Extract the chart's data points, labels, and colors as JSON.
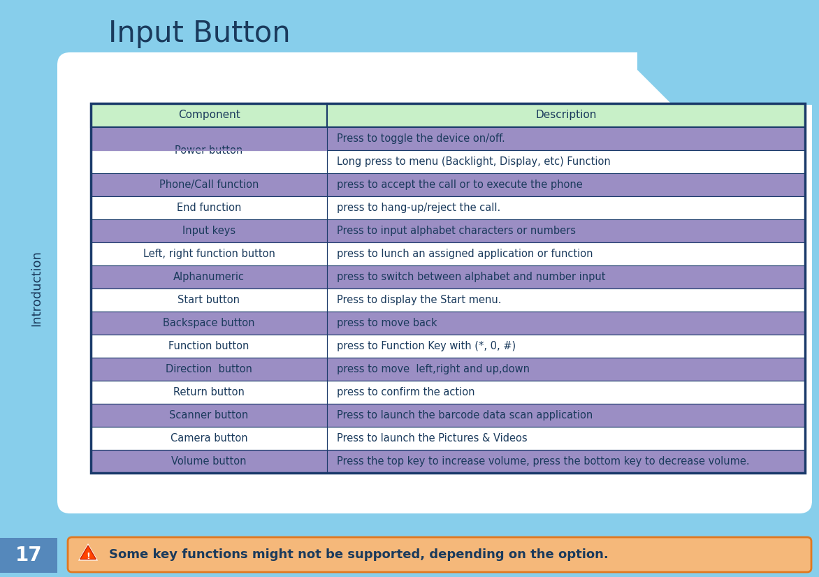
{
  "title": "Input Button",
  "bg_color": "#87CEEB",
  "white_panel_color": "#FFFFFF",
  "header_bg": "#C8F0C8",
  "header_text_color": "#1a3a5c",
  "col1_header": "Component",
  "col2_header": "Description",
  "rows": [
    {
      "component": "Power button",
      "description": "Press to toggle the device on/off.",
      "bg": "#9B8EC4",
      "hide_comp": false,
      "merge_start": true
    },
    {
      "component": "",
      "description": "Long press to menu (Backlight, Display, etc) Function",
      "bg": "#FFFFFF",
      "hide_comp": true,
      "merge_start": false
    },
    {
      "component": "Phone/Call function",
      "description": "press to accept the call or to execute the phone",
      "bg": "#9B8EC4",
      "hide_comp": false,
      "merge_start": false
    },
    {
      "component": "End function",
      "description": "press to hang-up/reject the call.",
      "bg": "#FFFFFF",
      "hide_comp": false,
      "merge_start": false
    },
    {
      "component": "Input keys",
      "description": "Press to input alphabet characters or numbers",
      "bg": "#9B8EC4",
      "hide_comp": false,
      "merge_start": false
    },
    {
      "component": "Left, right function button",
      "description": "press to lunch an assigned application or function",
      "bg": "#FFFFFF",
      "hide_comp": false,
      "merge_start": false
    },
    {
      "component": "Alphanumeric",
      "description": "press to switch between alphabet and number input",
      "bg": "#9B8EC4",
      "hide_comp": false,
      "merge_start": false
    },
    {
      "component": "Start button",
      "description": "Press to display the Start menu.",
      "bg": "#FFFFFF",
      "hide_comp": false,
      "merge_start": false
    },
    {
      "component": "Backspace button",
      "description": "press to move back",
      "bg": "#9B8EC4",
      "hide_comp": false,
      "merge_start": false
    },
    {
      "component": "Function button",
      "description": "press to Function Key with (*, 0, #)",
      "bg": "#FFFFFF",
      "hide_comp": false,
      "merge_start": false
    },
    {
      "component": "Direction  button",
      "description": "press to move  left,right and up,down",
      "bg": "#9B8EC4",
      "hide_comp": false,
      "merge_start": false
    },
    {
      "component": "Return button",
      "description": "press to confirm the action",
      "bg": "#FFFFFF",
      "hide_comp": false,
      "merge_start": false
    },
    {
      "component": "Scanner button",
      "description": "Press to launch the barcode data scan application",
      "bg": "#9B8EC4",
      "hide_comp": false,
      "merge_start": false
    },
    {
      "component": "Camera button",
      "description": "Press to launch the Pictures & Videos",
      "bg": "#FFFFFF",
      "hide_comp": false,
      "merge_start": false
    },
    {
      "component": "Volume button",
      "description": "Press the top key to increase volume, press the bottom key to decrease volume.",
      "bg": "#9B8EC4",
      "hide_comp": false,
      "merge_start": false
    }
  ],
  "sidebar_text": "Introduction",
  "sidebar_text_color": "#1a3a5c",
  "page_num": "17",
  "page_num_color": "#FFFFFF",
  "page_num_bg": "#5588BB",
  "note_text": "Some key functions might not be supported, depending on the option.",
  "note_bg": "#F5B87A",
  "note_border": "#E07820",
  "note_text_color": "#1a3a5c",
  "table_border_color": "#1a3a6a",
  "title_color": "#1a3a5c",
  "cell_text_color": "#1a3a5c"
}
